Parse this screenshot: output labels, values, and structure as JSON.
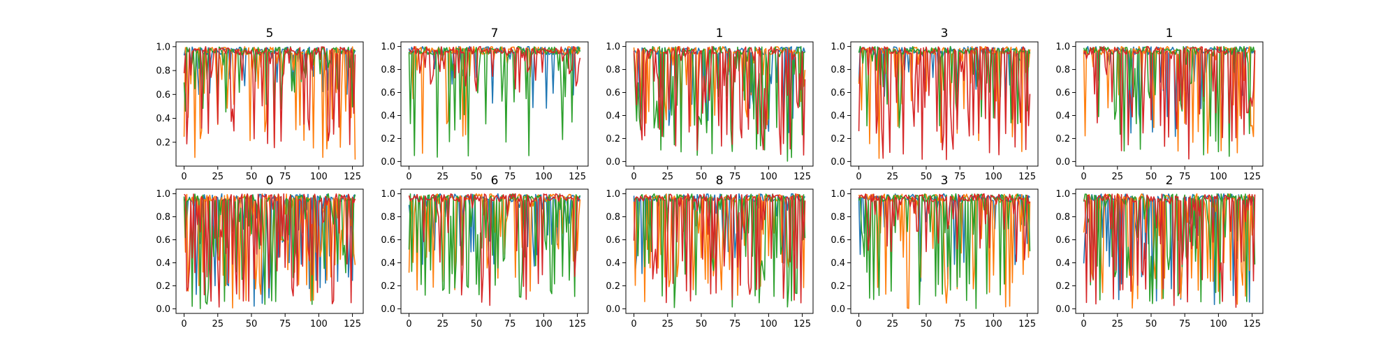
{
  "chart_data": {
    "type": "line",
    "layout_grid": "2x5",
    "xlim": [
      -6,
      133
    ],
    "x_ticks": [
      "0",
      "25",
      "50",
      "75",
      "100",
      "125"
    ],
    "x_tick_values": [
      0,
      25,
      50,
      75,
      100,
      125
    ],
    "x_points": 128,
    "series_colors": [
      "#1f77b4",
      "#ff7f0e",
      "#2ca02c",
      "#d62728"
    ],
    "grid": false,
    "panels": [
      {
        "title": "5",
        "ylim": [
          0.0,
          1.04
        ],
        "y_ticks": [
          "0.2",
          "0.4",
          "0.6",
          "0.8",
          "1.0"
        ],
        "y_tick_values": [
          0.2,
          0.4,
          0.6,
          0.8,
          1.0
        ],
        "series": [
          {
            "seed": 11,
            "spike_rate": 0.18,
            "spike_min": 0.6
          },
          {
            "seed": 12,
            "spike_rate": 0.3,
            "spike_min": 0.05
          },
          {
            "seed": 13,
            "spike_rate": 0.3,
            "spike_min": 0.45
          },
          {
            "seed": 14,
            "spike_rate": 0.28,
            "spike_min": 0.15
          }
        ]
      },
      {
        "title": "7",
        "ylim": [
          -0.04,
          1.04
        ],
        "y_ticks": [
          "0.0",
          "0.2",
          "0.4",
          "0.6",
          "0.8",
          "1.0"
        ],
        "y_tick_values": [
          0.0,
          0.2,
          0.4,
          0.6,
          0.8,
          1.0
        ],
        "series": [
          {
            "seed": 21,
            "spike_rate": 0.12,
            "spike_min": 0.4
          },
          {
            "seed": 22,
            "spike_rate": 0.1,
            "spike_min": 0.05
          },
          {
            "seed": 23,
            "spike_rate": 0.2,
            "spike_min": 0.0
          },
          {
            "seed": 24,
            "spike_rate": 0.32,
            "spike_min": 0.6
          }
        ]
      },
      {
        "title": "1",
        "ylim": [
          -0.04,
          1.04
        ],
        "y_ticks": [
          "0.0",
          "0.2",
          "0.4",
          "0.6",
          "0.8",
          "1.0"
        ],
        "y_tick_values": [
          0.0,
          0.2,
          0.4,
          0.6,
          0.8,
          1.0
        ],
        "series": [
          {
            "seed": 31,
            "spike_rate": 0.2,
            "spike_min": 0.25
          },
          {
            "seed": 32,
            "spike_rate": 0.22,
            "spike_min": 0.3
          },
          {
            "seed": 33,
            "spike_rate": 0.45,
            "spike_min": 0.0
          },
          {
            "seed": 34,
            "spike_rate": 0.5,
            "spike_min": 0.05
          }
        ]
      },
      {
        "title": "3",
        "ylim": [
          -0.04,
          1.04
        ],
        "y_ticks": [
          "0.0",
          "0.2",
          "0.4",
          "0.6",
          "0.8",
          "1.0"
        ],
        "y_tick_values": [
          0.0,
          0.2,
          0.4,
          0.6,
          0.8,
          1.0
        ],
        "series": [
          {
            "seed": 41,
            "spike_rate": 0.15,
            "spike_min": 0.5
          },
          {
            "seed": 42,
            "spike_rate": 0.18,
            "spike_min": 0.0
          },
          {
            "seed": 43,
            "spike_rate": 0.22,
            "spike_min": 0.2
          },
          {
            "seed": 44,
            "spike_rate": 0.45,
            "spike_min": 0.0
          }
        ]
      },
      {
        "title": "1",
        "ylim": [
          -0.04,
          1.04
        ],
        "y_ticks": [
          "0.0",
          "0.2",
          "0.4",
          "0.6",
          "0.8",
          "1.0"
        ],
        "y_tick_values": [
          0.0,
          0.2,
          0.4,
          0.6,
          0.8,
          1.0
        ],
        "series": [
          {
            "seed": 51,
            "spike_rate": 0.15,
            "spike_min": 0.2
          },
          {
            "seed": 52,
            "spike_rate": 0.2,
            "spike_min": 0.05
          },
          {
            "seed": 53,
            "spike_rate": 0.18,
            "spike_min": 0.0
          },
          {
            "seed": 54,
            "spike_rate": 0.3,
            "spike_min": 0.0
          }
        ]
      },
      {
        "title": "0",
        "ylim": [
          -0.04,
          1.04
        ],
        "y_ticks": [
          "0.0",
          "0.2",
          "0.4",
          "0.6",
          "0.8",
          "1.0"
        ],
        "y_tick_values": [
          0.0,
          0.2,
          0.4,
          0.6,
          0.8,
          1.0
        ],
        "series": [
          {
            "seed": 61,
            "spike_rate": 0.3,
            "spike_min": 0.0
          },
          {
            "seed": 62,
            "spike_rate": 0.45,
            "spike_min": 0.0
          },
          {
            "seed": 63,
            "spike_rate": 0.45,
            "spike_min": 0.0
          },
          {
            "seed": 64,
            "spike_rate": 0.5,
            "spike_min": 0.0
          }
        ]
      },
      {
        "title": "6",
        "ylim": [
          -0.04,
          1.04
        ],
        "y_ticks": [
          "0.0",
          "0.2",
          "0.4",
          "0.6",
          "0.8",
          "1.0"
        ],
        "y_tick_values": [
          0.0,
          0.2,
          0.4,
          0.6,
          0.8,
          1.0
        ],
        "series": [
          {
            "seed": 71,
            "spike_rate": 0.25,
            "spike_min": 0.35
          },
          {
            "seed": 72,
            "spike_rate": 0.3,
            "spike_min": 0.15
          },
          {
            "seed": 73,
            "spike_rate": 0.4,
            "spike_min": 0.1
          },
          {
            "seed": 74,
            "spike_rate": 0.2,
            "spike_min": 0.0
          }
        ]
      },
      {
        "title": "8",
        "ylim": [
          -0.04,
          1.04
        ],
        "y_ticks": [
          "0.0",
          "0.2",
          "0.4",
          "0.6",
          "0.8",
          "1.0"
        ],
        "y_tick_values": [
          0.0,
          0.2,
          0.4,
          0.6,
          0.8,
          1.0
        ],
        "series": [
          {
            "seed": 81,
            "spike_rate": 0.2,
            "spike_min": 0.3
          },
          {
            "seed": 82,
            "spike_rate": 0.35,
            "spike_min": 0.05
          },
          {
            "seed": 83,
            "spike_rate": 0.45,
            "spike_min": 0.0
          },
          {
            "seed": 84,
            "spike_rate": 0.35,
            "spike_min": 0.05
          }
        ]
      },
      {
        "title": "3",
        "ylim": [
          -0.04,
          1.04
        ],
        "y_ticks": [
          "0.0",
          "0.2",
          "0.4",
          "0.6",
          "0.8",
          "1.0"
        ],
        "y_tick_values": [
          0.0,
          0.2,
          0.4,
          0.6,
          0.8,
          1.0
        ],
        "series": [
          {
            "seed": 91,
            "spike_rate": 0.15,
            "spike_min": 0.2
          },
          {
            "seed": 92,
            "spike_rate": 0.3,
            "spike_min": 0.0
          },
          {
            "seed": 93,
            "spike_rate": 0.35,
            "spike_min": 0.0
          },
          {
            "seed": 94,
            "spike_rate": 0.25,
            "spike_min": 0.4
          }
        ]
      },
      {
        "title": "2",
        "ylim": [
          -0.04,
          1.04
        ],
        "y_ticks": [
          "0.0",
          "0.2",
          "0.4",
          "0.6",
          "0.8",
          "1.0"
        ],
        "y_tick_values": [
          0.0,
          0.2,
          0.4,
          0.6,
          0.8,
          1.0
        ],
        "series": [
          {
            "seed": 101,
            "spike_rate": 0.25,
            "spike_min": 0.0
          },
          {
            "seed": 102,
            "spike_rate": 0.4,
            "spike_min": 0.0
          },
          {
            "seed": 103,
            "spike_rate": 0.45,
            "spike_min": 0.0
          },
          {
            "seed": 104,
            "spike_rate": 0.35,
            "spike_min": 0.0
          }
        ]
      }
    ]
  }
}
